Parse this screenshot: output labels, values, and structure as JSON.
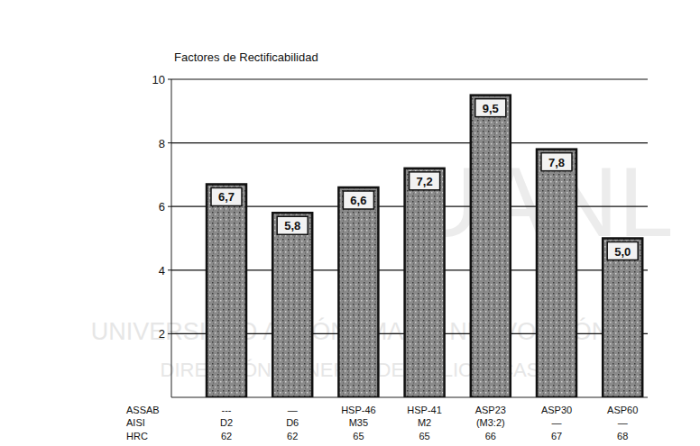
{
  "chart_data": {
    "type": "bar",
    "title": "Factores de Rectificabilidad",
    "categories": [
      "---",
      "—",
      "HSP-46",
      "HSP-41",
      "ASP23",
      "ASP30",
      "ASP60"
    ],
    "aisi": [
      "D2",
      "D6",
      "M35",
      "M2",
      "(M3:2)",
      "—",
      "—"
    ],
    "hrc": [
      "62",
      "62",
      "65",
      "65",
      "66",
      "67",
      "68"
    ],
    "row_labels": [
      "ASSAB",
      "AISI",
      "HRC"
    ],
    "values": [
      6.7,
      5.8,
      6.6,
      7.2,
      9.5,
      7.8,
      5.0
    ],
    "value_labels": [
      "6,7",
      "5,8",
      "6,6",
      "7,2",
      "9,5",
      "7,8",
      "5,0"
    ],
    "color": "#8a8a8a",
    "ylim": [
      0,
      10
    ],
    "yticks": [
      2,
      4,
      6,
      8,
      10
    ],
    "grid": true,
    "data_labels": true,
    "watermark": [
      "UANL",
      "UNIVERSIDAD AUTÓNOMA DE NUEVO LEÓN",
      "DIRECCIÓN GENERAL DE BIBLIOTECAS"
    ]
  }
}
